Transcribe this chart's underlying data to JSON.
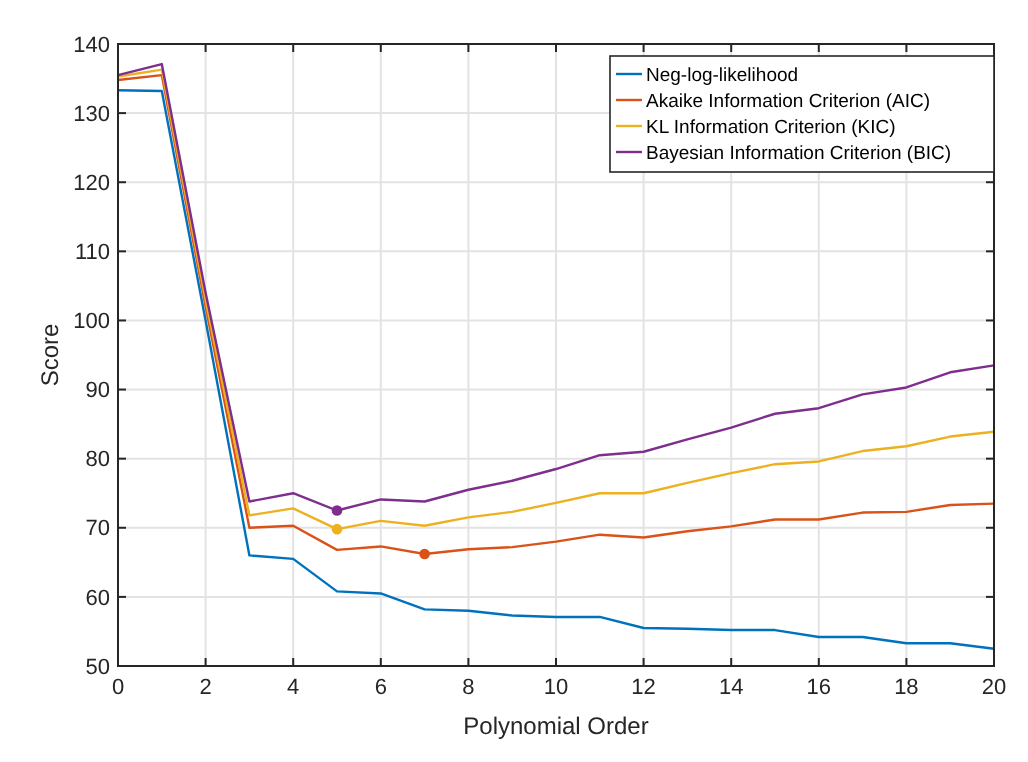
{
  "chart_data": {
    "type": "line",
    "xlabel": "Polynomial Order",
    "ylabel": "Score",
    "x": [
      0,
      1,
      2,
      3,
      4,
      5,
      6,
      7,
      8,
      9,
      10,
      11,
      12,
      13,
      14,
      15,
      16,
      17,
      18,
      19,
      20
    ],
    "xlim": [
      0,
      20
    ],
    "xticks": [
      0,
      2,
      4,
      6,
      8,
      10,
      12,
      14,
      16,
      18,
      20
    ],
    "ylim": [
      50,
      140
    ],
    "yticks": [
      50,
      60,
      70,
      80,
      90,
      100,
      110,
      120,
      130,
      140
    ],
    "grid": true,
    "legend": "top right",
    "marker": "none",
    "line_style": "solid",
    "series": [
      {
        "name": "Neg-log-likelihood",
        "color": "#0072bd",
        "values": [
          133.3,
          133.2,
          100,
          66,
          65.5,
          60.8,
          60.5,
          58.2,
          58,
          57.3,
          57.1,
          57.1,
          55.5,
          55.4,
          55.2,
          55.2,
          54.2,
          54.2,
          53.3,
          53.3,
          52.5
        ]
      },
      {
        "name": "Akaike Information Criterion (AIC)",
        "color": "#d95319",
        "values": [
          134.8,
          135.5,
          102,
          70,
          70.3,
          66.8,
          67.3,
          66.2,
          66.9,
          67.2,
          68,
          69,
          68.6,
          69.5,
          70.2,
          71.2,
          71.2,
          72.2,
          72.3,
          73.3,
          73.5
        ]
      },
      {
        "name": "KL Information Criterion (KIC)",
        "color": "#edb120",
        "values": [
          135.3,
          136.3,
          103,
          71.8,
          72.8,
          69.8,
          71,
          70.3,
          71.5,
          72.3,
          73.6,
          75,
          75,
          76.5,
          77.9,
          79.2,
          79.6,
          81.1,
          81.8,
          83.2,
          83.9
        ]
      },
      {
        "name": "Bayesian Information Criterion (BIC)",
        "color": "#7e2f8e",
        "values": [
          135.5,
          137.1,
          104,
          73.8,
          75,
          72.5,
          74.1,
          73.8,
          75.5,
          76.8,
          78.5,
          80.5,
          81,
          82.8,
          84.5,
          86.5,
          87.3,
          89.3,
          90.3,
          92.5,
          93.5
        ]
      },
      {
        "type": "scatter",
        "color": "#d95319",
        "marker": "circle",
        "values": [
          null,
          null,
          null,
          null,
          null,
          null,
          null,
          66.2,
          null,
          null,
          null,
          null,
          null,
          null,
          null,
          null,
          null,
          null,
          null,
          null,
          null
        ]
      },
      {
        "type": "scatter",
        "color": "#edb120",
        "marker": "circle",
        "values": [
          null,
          null,
          null,
          null,
          null,
          69.8,
          null,
          null,
          null,
          null,
          null,
          null,
          null,
          null,
          null,
          null,
          null,
          null,
          null,
          null,
          null
        ]
      },
      {
        "type": "scatter",
        "color": "#7e2f8e",
        "marker": "circle",
        "values": [
          null,
          null,
          null,
          null,
          null,
          72.5,
          null,
          null,
          null,
          null,
          null,
          null,
          null,
          null,
          null,
          null,
          null,
          null,
          null,
          null,
          null
        ]
      }
    ]
  }
}
